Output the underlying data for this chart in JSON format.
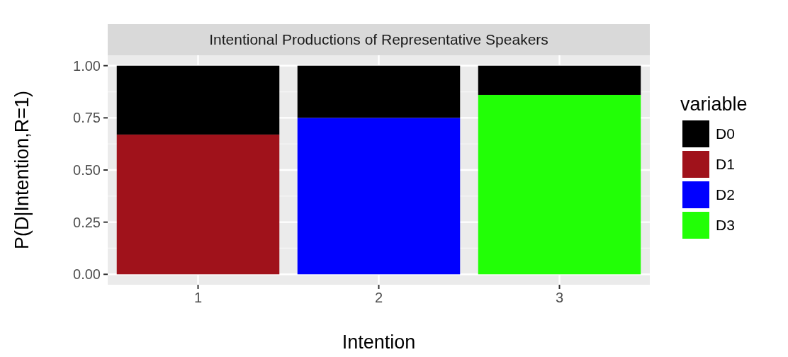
{
  "chart_data": {
    "type": "bar",
    "title": "Intentional Productions of Representative Speakers",
    "xlabel": "Intention",
    "ylabel": "P(D|Intention,R=1)",
    "legend_title": "variable",
    "categories": [
      "1",
      "2",
      "3"
    ],
    "stacked": true,
    "series": [
      {
        "name": "D3",
        "color": "#22ff06",
        "values": [
          0,
          0,
          0.86
        ]
      },
      {
        "name": "D2",
        "color": "#0000ff",
        "values": [
          0,
          0.75,
          0
        ]
      },
      {
        "name": "D1",
        "color": "#a0121b",
        "values": [
          0.67,
          0,
          0
        ]
      },
      {
        "name": "D0",
        "color": "#000000",
        "values": [
          0.33,
          0.25,
          0.14
        ]
      }
    ],
    "ylim": [
      -0.05,
      1.05
    ],
    "yticks": [
      {
        "value": 0,
        "label": "0.00"
      },
      {
        "value": 0.25,
        "label": "0.25"
      },
      {
        "value": 0.5,
        "label": "0.50"
      },
      {
        "value": 0.75,
        "label": "0.75"
      },
      {
        "value": 1,
        "label": "1.00"
      }
    ],
    "grid": true,
    "legend": "right"
  }
}
